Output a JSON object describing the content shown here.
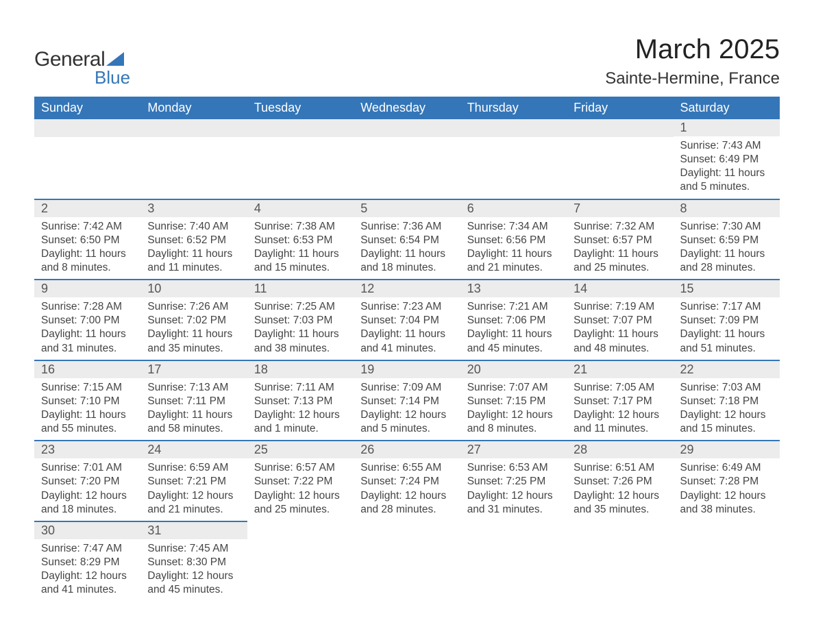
{
  "logo": {
    "word1": "General",
    "word2": "Blue",
    "triangle_color": "#3476b8",
    "text_color": "#333333"
  },
  "title": {
    "month": "March 2025",
    "location": "Sainte-Hermine, France"
  },
  "style": {
    "header_bg": "#3476b8",
    "header_fg": "#ffffff",
    "daynum_bg": "#ececec",
    "row_divider": "#3476b8",
    "body_text": "#444444",
    "title_fontsize": 40,
    "location_fontsize": 24,
    "weekday_fontsize": 18,
    "cell_fontsize": 15.5
  },
  "weekdays": [
    "Sunday",
    "Monday",
    "Tuesday",
    "Wednesday",
    "Thursday",
    "Friday",
    "Saturday"
  ],
  "weeks": [
    [
      null,
      null,
      null,
      null,
      null,
      null,
      {
        "n": "1",
        "sr": "Sunrise: 7:43 AM",
        "ss": "Sunset: 6:49 PM",
        "d1": "Daylight: 11 hours",
        "d2": "and 5 minutes."
      }
    ],
    [
      {
        "n": "2",
        "sr": "Sunrise: 7:42 AM",
        "ss": "Sunset: 6:50 PM",
        "d1": "Daylight: 11 hours",
        "d2": "and 8 minutes."
      },
      {
        "n": "3",
        "sr": "Sunrise: 7:40 AM",
        "ss": "Sunset: 6:52 PM",
        "d1": "Daylight: 11 hours",
        "d2": "and 11 minutes."
      },
      {
        "n": "4",
        "sr": "Sunrise: 7:38 AM",
        "ss": "Sunset: 6:53 PM",
        "d1": "Daylight: 11 hours",
        "d2": "and 15 minutes."
      },
      {
        "n": "5",
        "sr": "Sunrise: 7:36 AM",
        "ss": "Sunset: 6:54 PM",
        "d1": "Daylight: 11 hours",
        "d2": "and 18 minutes."
      },
      {
        "n": "6",
        "sr": "Sunrise: 7:34 AM",
        "ss": "Sunset: 6:56 PM",
        "d1": "Daylight: 11 hours",
        "d2": "and 21 minutes."
      },
      {
        "n": "7",
        "sr": "Sunrise: 7:32 AM",
        "ss": "Sunset: 6:57 PM",
        "d1": "Daylight: 11 hours",
        "d2": "and 25 minutes."
      },
      {
        "n": "8",
        "sr": "Sunrise: 7:30 AM",
        "ss": "Sunset: 6:59 PM",
        "d1": "Daylight: 11 hours",
        "d2": "and 28 minutes."
      }
    ],
    [
      {
        "n": "9",
        "sr": "Sunrise: 7:28 AM",
        "ss": "Sunset: 7:00 PM",
        "d1": "Daylight: 11 hours",
        "d2": "and 31 minutes."
      },
      {
        "n": "10",
        "sr": "Sunrise: 7:26 AM",
        "ss": "Sunset: 7:02 PM",
        "d1": "Daylight: 11 hours",
        "d2": "and 35 minutes."
      },
      {
        "n": "11",
        "sr": "Sunrise: 7:25 AM",
        "ss": "Sunset: 7:03 PM",
        "d1": "Daylight: 11 hours",
        "d2": "and 38 minutes."
      },
      {
        "n": "12",
        "sr": "Sunrise: 7:23 AM",
        "ss": "Sunset: 7:04 PM",
        "d1": "Daylight: 11 hours",
        "d2": "and 41 minutes."
      },
      {
        "n": "13",
        "sr": "Sunrise: 7:21 AM",
        "ss": "Sunset: 7:06 PM",
        "d1": "Daylight: 11 hours",
        "d2": "and 45 minutes."
      },
      {
        "n": "14",
        "sr": "Sunrise: 7:19 AM",
        "ss": "Sunset: 7:07 PM",
        "d1": "Daylight: 11 hours",
        "d2": "and 48 minutes."
      },
      {
        "n": "15",
        "sr": "Sunrise: 7:17 AM",
        "ss": "Sunset: 7:09 PM",
        "d1": "Daylight: 11 hours",
        "d2": "and 51 minutes."
      }
    ],
    [
      {
        "n": "16",
        "sr": "Sunrise: 7:15 AM",
        "ss": "Sunset: 7:10 PM",
        "d1": "Daylight: 11 hours",
        "d2": "and 55 minutes."
      },
      {
        "n": "17",
        "sr": "Sunrise: 7:13 AM",
        "ss": "Sunset: 7:11 PM",
        "d1": "Daylight: 11 hours",
        "d2": "and 58 minutes."
      },
      {
        "n": "18",
        "sr": "Sunrise: 7:11 AM",
        "ss": "Sunset: 7:13 PM",
        "d1": "Daylight: 12 hours",
        "d2": "and 1 minute."
      },
      {
        "n": "19",
        "sr": "Sunrise: 7:09 AM",
        "ss": "Sunset: 7:14 PM",
        "d1": "Daylight: 12 hours",
        "d2": "and 5 minutes."
      },
      {
        "n": "20",
        "sr": "Sunrise: 7:07 AM",
        "ss": "Sunset: 7:15 PM",
        "d1": "Daylight: 12 hours",
        "d2": "and 8 minutes."
      },
      {
        "n": "21",
        "sr": "Sunrise: 7:05 AM",
        "ss": "Sunset: 7:17 PM",
        "d1": "Daylight: 12 hours",
        "d2": "and 11 minutes."
      },
      {
        "n": "22",
        "sr": "Sunrise: 7:03 AM",
        "ss": "Sunset: 7:18 PM",
        "d1": "Daylight: 12 hours",
        "d2": "and 15 minutes."
      }
    ],
    [
      {
        "n": "23",
        "sr": "Sunrise: 7:01 AM",
        "ss": "Sunset: 7:20 PM",
        "d1": "Daylight: 12 hours",
        "d2": "and 18 minutes."
      },
      {
        "n": "24",
        "sr": "Sunrise: 6:59 AM",
        "ss": "Sunset: 7:21 PM",
        "d1": "Daylight: 12 hours",
        "d2": "and 21 minutes."
      },
      {
        "n": "25",
        "sr": "Sunrise: 6:57 AM",
        "ss": "Sunset: 7:22 PM",
        "d1": "Daylight: 12 hours",
        "d2": "and 25 minutes."
      },
      {
        "n": "26",
        "sr": "Sunrise: 6:55 AM",
        "ss": "Sunset: 7:24 PM",
        "d1": "Daylight: 12 hours",
        "d2": "and 28 minutes."
      },
      {
        "n": "27",
        "sr": "Sunrise: 6:53 AM",
        "ss": "Sunset: 7:25 PM",
        "d1": "Daylight: 12 hours",
        "d2": "and 31 minutes."
      },
      {
        "n": "28",
        "sr": "Sunrise: 6:51 AM",
        "ss": "Sunset: 7:26 PM",
        "d1": "Daylight: 12 hours",
        "d2": "and 35 minutes."
      },
      {
        "n": "29",
        "sr": "Sunrise: 6:49 AM",
        "ss": "Sunset: 7:28 PM",
        "d1": "Daylight: 12 hours",
        "d2": "and 38 minutes."
      }
    ],
    [
      {
        "n": "30",
        "sr": "Sunrise: 7:47 AM",
        "ss": "Sunset: 8:29 PM",
        "d1": "Daylight: 12 hours",
        "d2": "and 41 minutes."
      },
      {
        "n": "31",
        "sr": "Sunrise: 7:45 AM",
        "ss": "Sunset: 8:30 PM",
        "d1": "Daylight: 12 hours",
        "d2": "and 45 minutes."
      },
      null,
      null,
      null,
      null,
      null
    ]
  ]
}
